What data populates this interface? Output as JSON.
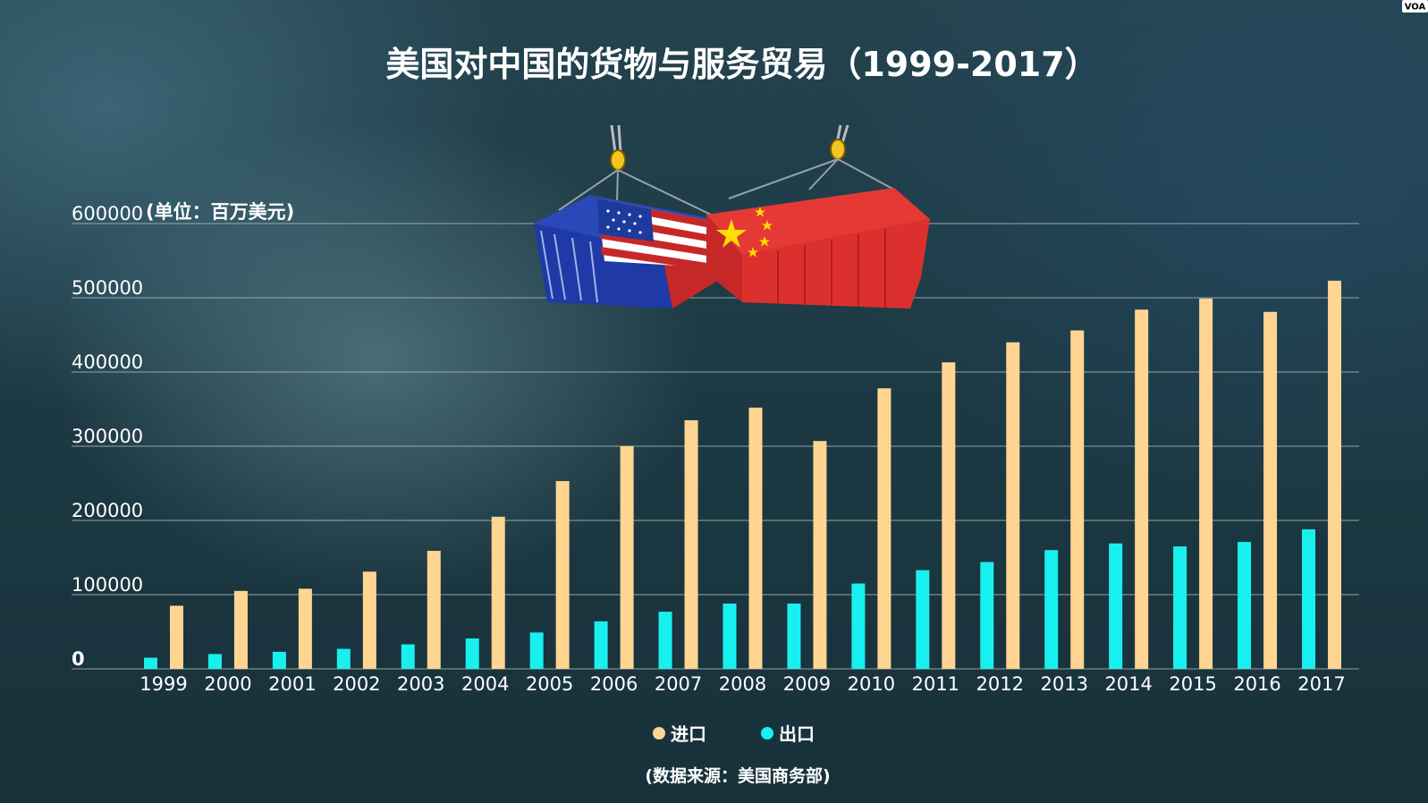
{
  "logo": "VOA",
  "colors": {
    "import": "#ffd591",
    "export": "#18f0f0",
    "grid": "#b9c7cc"
  },
  "illustration": {
    "name": "us-china-trade-containers"
  },
  "source": "(数据来源：美国商务部)",
  "chart_data": {
    "type": "bar",
    "title": "美国对中国的货物与服务贸易（1999-2017）",
    "ylabel": "(单位：百万美元)",
    "ylim": [
      0,
      600000
    ],
    "yticks": [
      0,
      100000,
      200000,
      300000,
      400000,
      500000,
      600000
    ],
    "ytick_labels": [
      "0",
      "100000",
      "200000",
      "300000",
      "400000",
      "500000",
      "600000"
    ],
    "grid": true,
    "legend_position": "bottom",
    "categories": [
      "1999",
      "2000",
      "2001",
      "2002",
      "2003",
      "2004",
      "2005",
      "2006",
      "2007",
      "2008",
      "2009",
      "2010",
      "2011",
      "2012",
      "2013",
      "2014",
      "2015",
      "2016",
      "2017"
    ],
    "series": [
      {
        "name": "进口",
        "values": [
          85000,
          105000,
          108000,
          131000,
          159000,
          205000,
          253000,
          300000,
          335000,
          352000,
          307000,
          378000,
          413000,
          440000,
          456000,
          484000,
          499000,
          481000,
          523000
        ]
      },
      {
        "name": "出口",
        "values": [
          15000,
          20000,
          23000,
          27000,
          33000,
          41000,
          49000,
          64000,
          77000,
          88000,
          88000,
          115000,
          133000,
          144000,
          160000,
          169000,
          165000,
          171000,
          188000
        ]
      }
    ]
  }
}
